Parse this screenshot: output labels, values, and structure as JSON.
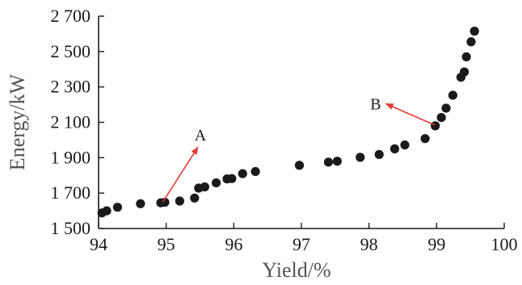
{
  "chart_data": {
    "type": "scatter",
    "title": "",
    "xlabel": "Yield/%",
    "ylabel": "Energy/kW",
    "xlim": [
      94,
      100
    ],
    "ylim": [
      1500,
      2700
    ],
    "xticks": [
      94,
      95,
      96,
      97,
      98,
      99,
      100
    ],
    "xtick_labels": [
      "94",
      "95",
      "96",
      "97",
      "98",
      "99",
      "100"
    ],
    "yticks": [
      1500,
      1700,
      1900,
      2100,
      2300,
      2500,
      2700
    ],
    "ytick_labels": [
      "1 500",
      "1 700",
      "1 900",
      "2 100",
      "2 300",
      "2 500",
      "2 700"
    ],
    "grid": false,
    "marker_color": "#1a1a1a",
    "annotation_color": "#e53935",
    "series": [
      {
        "points": [
          {
            "x": 94.05,
            "y": 1588
          },
          {
            "x": 94.12,
            "y": 1600
          },
          {
            "x": 94.28,
            "y": 1620
          },
          {
            "x": 94.62,
            "y": 1640
          },
          {
            "x": 94.92,
            "y": 1645
          },
          {
            "x": 94.98,
            "y": 1648
          },
          {
            "x": 95.2,
            "y": 1655
          },
          {
            "x": 95.42,
            "y": 1672
          },
          {
            "x": 95.48,
            "y": 1728
          },
          {
            "x": 95.57,
            "y": 1735
          },
          {
            "x": 95.74,
            "y": 1758
          },
          {
            "x": 95.9,
            "y": 1780
          },
          {
            "x": 95.97,
            "y": 1782
          },
          {
            "x": 96.13,
            "y": 1810
          },
          {
            "x": 96.32,
            "y": 1822
          },
          {
            "x": 96.97,
            "y": 1857
          },
          {
            "x": 97.4,
            "y": 1875
          },
          {
            "x": 97.53,
            "y": 1880
          },
          {
            "x": 97.87,
            "y": 1902
          },
          {
            "x": 98.15,
            "y": 1918
          },
          {
            "x": 98.38,
            "y": 1950
          },
          {
            "x": 98.53,
            "y": 1972
          },
          {
            "x": 98.83,
            "y": 2008
          },
          {
            "x": 98.98,
            "y": 2080
          },
          {
            "x": 99.07,
            "y": 2127
          },
          {
            "x": 99.14,
            "y": 2180
          },
          {
            "x": 99.24,
            "y": 2253
          },
          {
            "x": 99.36,
            "y": 2355
          },
          {
            "x": 99.41,
            "y": 2385
          },
          {
            "x": 99.44,
            "y": 2470
          },
          {
            "x": 99.51,
            "y": 2555
          },
          {
            "x": 99.56,
            "y": 2615
          }
        ]
      }
    ],
    "annotations": [
      {
        "label": "A",
        "from": {
          "x": 94.95,
          "y": 1650
        },
        "to": {
          "x": 95.47,
          "y": 1960
        }
      },
      {
        "label": "B",
        "from": {
          "x": 98.97,
          "y": 2085
        },
        "to": {
          "x": 98.25,
          "y": 2205
        }
      }
    ]
  }
}
